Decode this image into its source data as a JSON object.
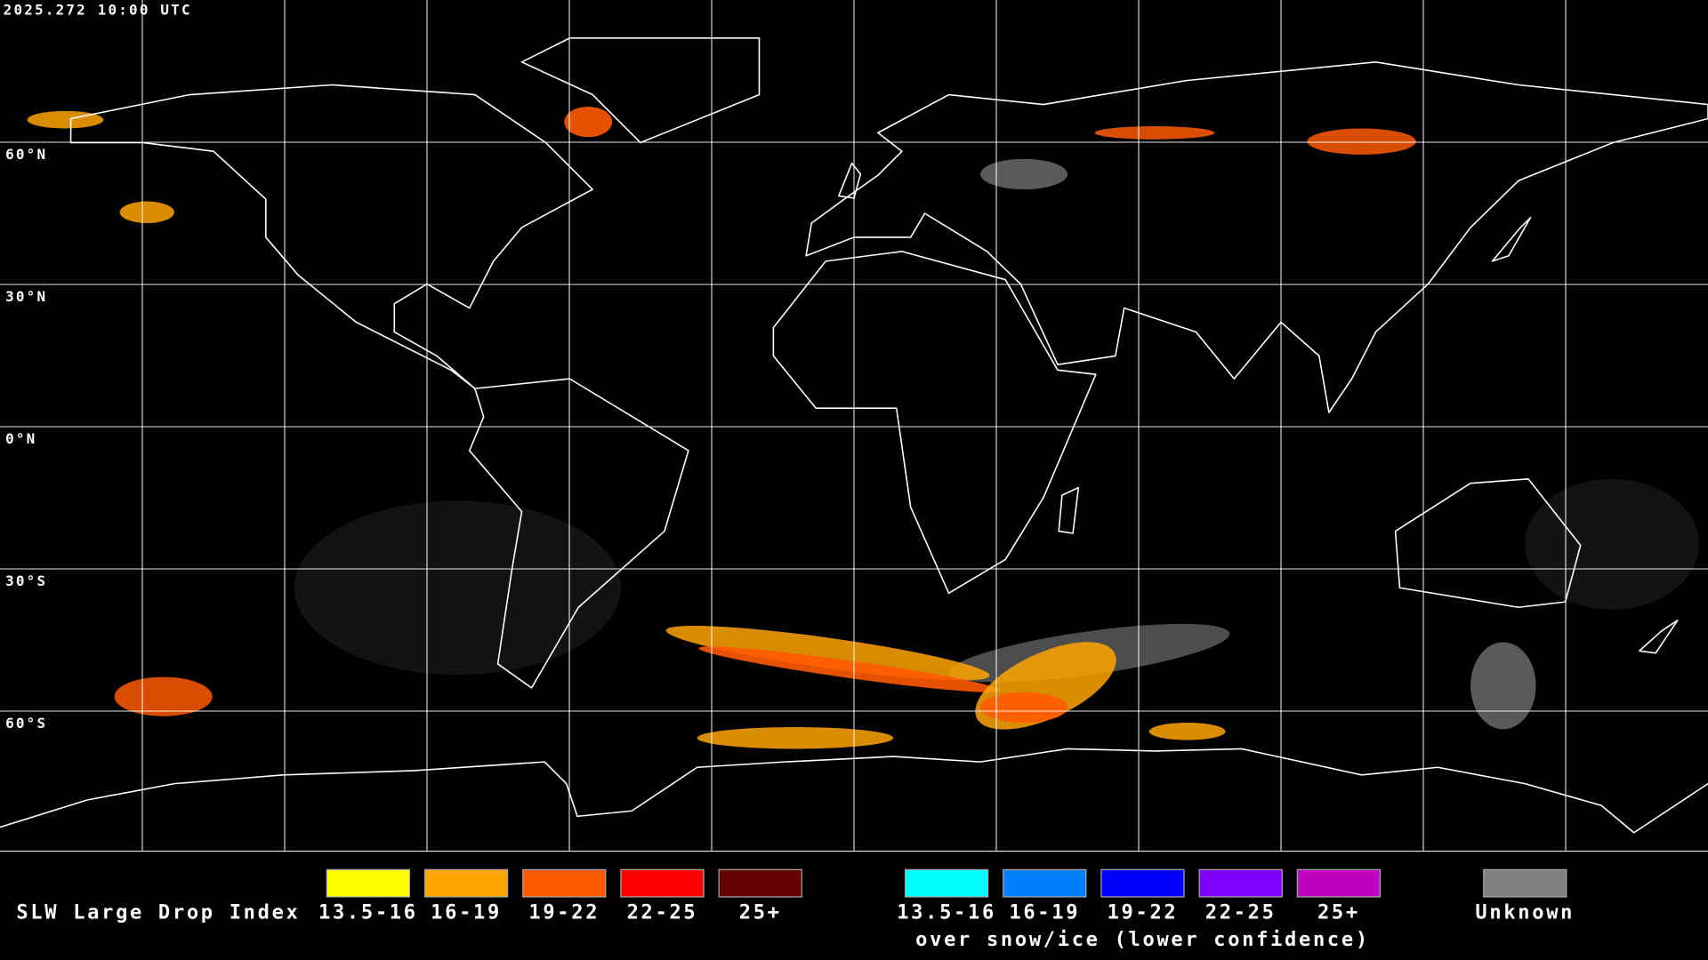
{
  "timestamp": "2025.272 10:00 UTC",
  "map": {
    "latitude_labels": [
      "60°N",
      "30°N",
      "0°N",
      "30°S",
      "60°S"
    ]
  },
  "legend": {
    "title": "SLW Large Drop Index",
    "groups": [
      {
        "items": [
          {
            "label": "13.5-16",
            "color": "#ffff00"
          },
          {
            "label": "16-19",
            "color": "#ffa500"
          },
          {
            "label": "19-22",
            "color": "#ff5a00"
          },
          {
            "label": "22-25",
            "color": "#ff0000"
          },
          {
            "label": "25+",
            "color": "#640000"
          }
        ]
      },
      {
        "items": [
          {
            "label": "13.5-16",
            "color": "#00ffff"
          },
          {
            "label": "16-19",
            "color": "#0080ff"
          },
          {
            "label": "19-22",
            "color": "#0000ff"
          },
          {
            "label": "22-25",
            "color": "#8000ff"
          },
          {
            "label": "25+",
            "color": "#c000c0"
          }
        ],
        "caption": "over snow/ice (lower confidence)"
      },
      {
        "items": [
          {
            "label": "Unknown",
            "color": "#808080"
          }
        ]
      }
    ]
  }
}
